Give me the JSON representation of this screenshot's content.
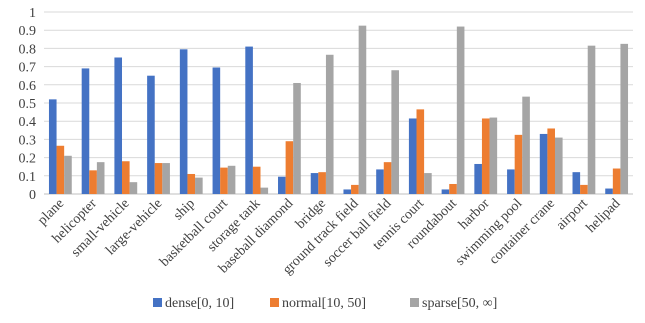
{
  "chart_data": {
    "type": "bar",
    "title": "",
    "xlabel": "",
    "ylabel": "",
    "ylim": [
      0,
      1
    ],
    "yticks": [
      0,
      0.1,
      0.2,
      0.3,
      0.4,
      0.5,
      0.6,
      0.7,
      0.8,
      0.9,
      1
    ],
    "ytick_labels": [
      "0",
      "0.1",
      "0.2",
      "0.3",
      "0.4",
      "0.5",
      "0.6",
      "0.7",
      "0.8",
      "0.9",
      "1"
    ],
    "grid": "horizontal",
    "legend_position": "bottom",
    "categories": [
      "plane",
      "helicopter",
      "small-vehicle",
      "large-vehicle",
      "ship",
      "basketball court",
      "storage tank",
      "baseball diamond",
      "bridge",
      "ground track field",
      "soccer ball field",
      "tennis court",
      "roundabout",
      "harbor",
      "swimming pool",
      "container crane",
      "airport",
      "helipad"
    ],
    "series": [
      {
        "name": "dense[0, 10]",
        "color": "#4472c4",
        "values": [
          0.52,
          0.69,
          0.75,
          0.65,
          0.795,
          0.695,
          0.81,
          0.095,
          0.115,
          0.025,
          0.135,
          0.415,
          0.025,
          0.165,
          0.135,
          0.33,
          0.12,
          0.03
        ]
      },
      {
        "name": "normal[10, 50]",
        "color": "#ed7d31",
        "values": [
          0.265,
          0.13,
          0.18,
          0.17,
          0.11,
          0.145,
          0.15,
          0.29,
          0.12,
          0.05,
          0.175,
          0.465,
          0.055,
          0.415,
          0.325,
          0.36,
          0.05,
          0.14
        ]
      },
      {
        "name": "sparse[50, ∞]",
        "color": "#a5a5a5",
        "values": [
          0.21,
          0.175,
          0.065,
          0.17,
          0.09,
          0.155,
          0.035,
          0.61,
          0.765,
          0.925,
          0.68,
          0.115,
          0.92,
          0.42,
          0.535,
          0.31,
          0.815,
          0.825
        ]
      }
    ]
  }
}
